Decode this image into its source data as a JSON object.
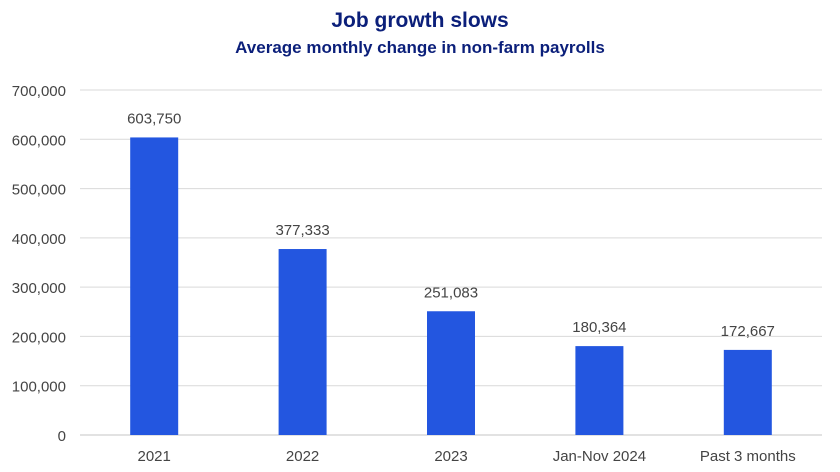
{
  "chart_data": {
    "type": "bar",
    "title": "Job growth slows",
    "subtitle": "Average monthly change in non-farm payrolls",
    "xlabel": "",
    "ylabel": "",
    "categories": [
      "2021",
      "2022",
      "2023",
      "Jan-Nov 2024",
      "Past 3 months"
    ],
    "values": [
      603750,
      377333,
      251083,
      180364,
      172667
    ],
    "data_labels": [
      "603,750",
      "377,333",
      "251,083",
      "180,364",
      "172,667"
    ],
    "ylim": [
      0,
      700000
    ],
    "yticks": [
      0,
      100000,
      200000,
      300000,
      400000,
      500000,
      600000,
      700000
    ],
    "ytick_labels": [
      "0",
      "100,000",
      "200,000",
      "300,000",
      "400,000",
      "500,000",
      "600,000",
      "700,000"
    ],
    "grid": true,
    "legend": "none",
    "colors": {
      "bar": "#2356e0",
      "title": "#0b1f7a",
      "grid": "#d9d9d9",
      "text": "#444444"
    }
  }
}
